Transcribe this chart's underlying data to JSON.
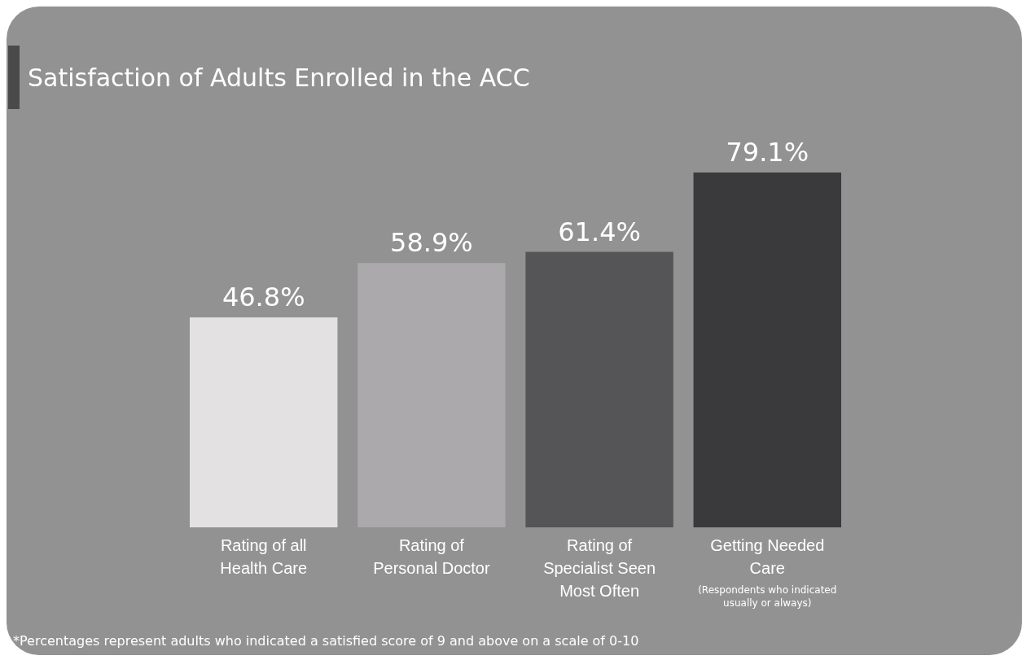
{
  "chart_data": {
    "type": "bar",
    "title": "Satisfaction of Adults Enrolled in the ACC",
    "categories": [
      "Rating of all Health Care",
      "Rating of Personal Doctor",
      "Rating of Specialist Seen Most Often",
      "Getting Needed Care"
    ],
    "values": [
      46.8,
      58.9,
      61.4,
      79.1
    ],
    "colors": [
      "#e3e1e2",
      "#aba9ac",
      "#555456",
      "#3a393b"
    ],
    "value_labels": [
      "46.8%",
      "58.9%",
      "61.4%",
      "79.1%"
    ],
    "annotations": [
      "(Respondents who indicated usually or always)",
      "*Percentages represent adults who indicated a satisfied score of 9 and above on a scale of 0-10"
    ]
  }
}
